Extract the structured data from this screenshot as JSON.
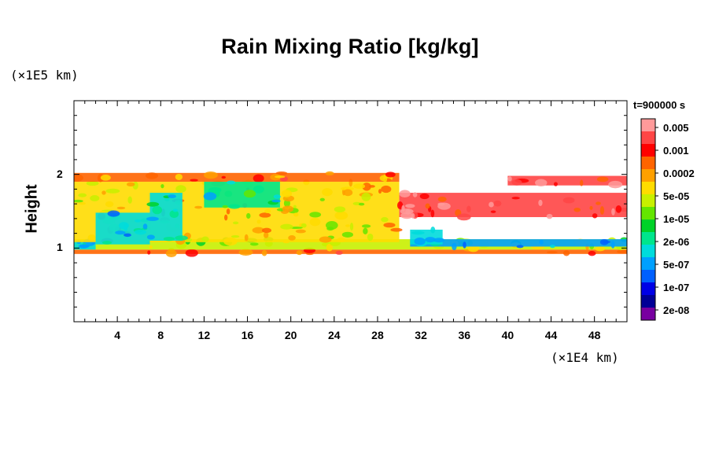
{
  "chart_data": {
    "type": "heatmap",
    "title": "Rain Mixing Ratio [kg/kg]",
    "ylabel": "Height",
    "xlabel": "",
    "x_unit": "(×1E4 km)",
    "y_unit": "(×1E5 km)",
    "time_label": "t=900000 s",
    "xlim": [
      0,
      51
    ],
    "ylim": [
      0,
      3
    ],
    "x_ticks": [
      "4",
      "8",
      "12",
      "16",
      "20",
      "24",
      "28",
      "32",
      "36",
      "40",
      "44",
      "48"
    ],
    "x_tick_values": [
      4,
      8,
      12,
      16,
      20,
      24,
      28,
      32,
      36,
      40,
      44,
      48
    ],
    "y_ticks": [
      "1",
      "2"
    ],
    "y_tick_values": [
      1,
      2
    ],
    "colorbar": {
      "labels": [
        "0.005",
        "0.001",
        "0.0002",
        "5e-05",
        "1e-05",
        "2e-06",
        "5e-07",
        "1e-07",
        "2e-08"
      ],
      "colors": [
        "#ff9a9a",
        "#ff4545",
        "#ff0000",
        "#ff6400",
        "#ffa000",
        "#ffdc00",
        "#c8f000",
        "#64e600",
        "#00d228",
        "#00e68c",
        "#00dcdc",
        "#00a0ff",
        "#0060ff",
        "#0000e6",
        "#000096",
        "#7800a0"
      ]
    },
    "regions": [
      {
        "x": [
          0,
          52
        ],
        "y": [
          0.92,
          0.98
        ],
        "level": 3
      },
      {
        "x": [
          0,
          52
        ],
        "y": [
          0.98,
          1.12
        ],
        "level": 6
      },
      {
        "x": [
          0,
          2
        ],
        "y": [
          0.98,
          1.1
        ],
        "level": 10
      },
      {
        "x": [
          0,
          30
        ],
        "y": [
          1.08,
          1.9
        ],
        "level": 5
      },
      {
        "x": [
          0,
          30
        ],
        "y": [
          1.9,
          2.02
        ],
        "level": 3
      },
      {
        "x": [
          2,
          7
        ],
        "y": [
          1.05,
          1.48
        ],
        "level": 10
      },
      {
        "x": [
          7,
          10
        ],
        "y": [
          1.1,
          1.75
        ],
        "level": 10
      },
      {
        "x": [
          12,
          19
        ],
        "y": [
          1.55,
          1.9
        ],
        "level": 9
      },
      {
        "x": [
          30,
          52
        ],
        "y": [
          1.42,
          1.75
        ],
        "level": 1
      },
      {
        "x": [
          31,
          52
        ],
        "y": [
          1.02,
          1.12
        ],
        "level": 11
      },
      {
        "x": [
          31,
          34
        ],
        "y": [
          1.05,
          1.25
        ],
        "level": 10
      },
      {
        "x": [
          40,
          52
        ],
        "y": [
          1.85,
          1.98
        ],
        "level": 1
      }
    ]
  }
}
